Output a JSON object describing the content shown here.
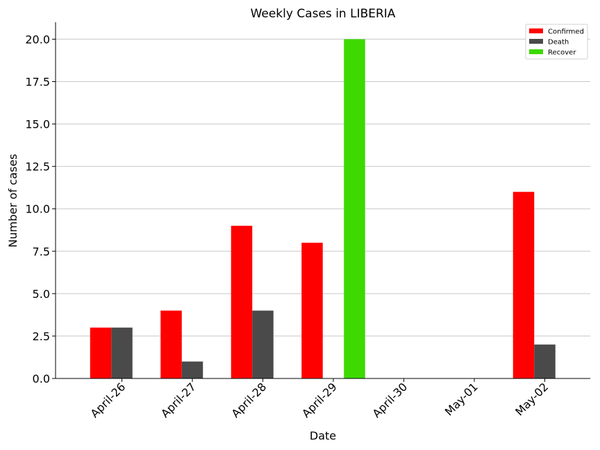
{
  "chart_data": {
    "type": "bar",
    "title": "Weekly Cases in LIBERIA",
    "xlabel": "Date",
    "ylabel": "Number of cases",
    "categories": [
      "April-26",
      "April-27",
      "April-28",
      "April-29",
      "April-30",
      "May-01",
      "May-02"
    ],
    "ylim": [
      0,
      21
    ],
    "yticks": [
      "0.0",
      "2.5",
      "5.0",
      "7.5",
      "10.0",
      "12.5",
      "15.0",
      "17.5",
      "20.0"
    ],
    "grid": "horizontal",
    "legend_position": "top-right",
    "series": [
      {
        "name": "Confirmed",
        "color": "#ff0000",
        "values": [
          3,
          4,
          9,
          8,
          0,
          0,
          11
        ]
      },
      {
        "name": "Death",
        "color": "#4a4a4a",
        "values": [
          3,
          1,
          4,
          0,
          0,
          0,
          2
        ]
      },
      {
        "name": "Recover",
        "color": "#3dd900",
        "values": [
          0,
          0,
          0,
          20,
          0,
          0,
          0
        ]
      }
    ]
  }
}
